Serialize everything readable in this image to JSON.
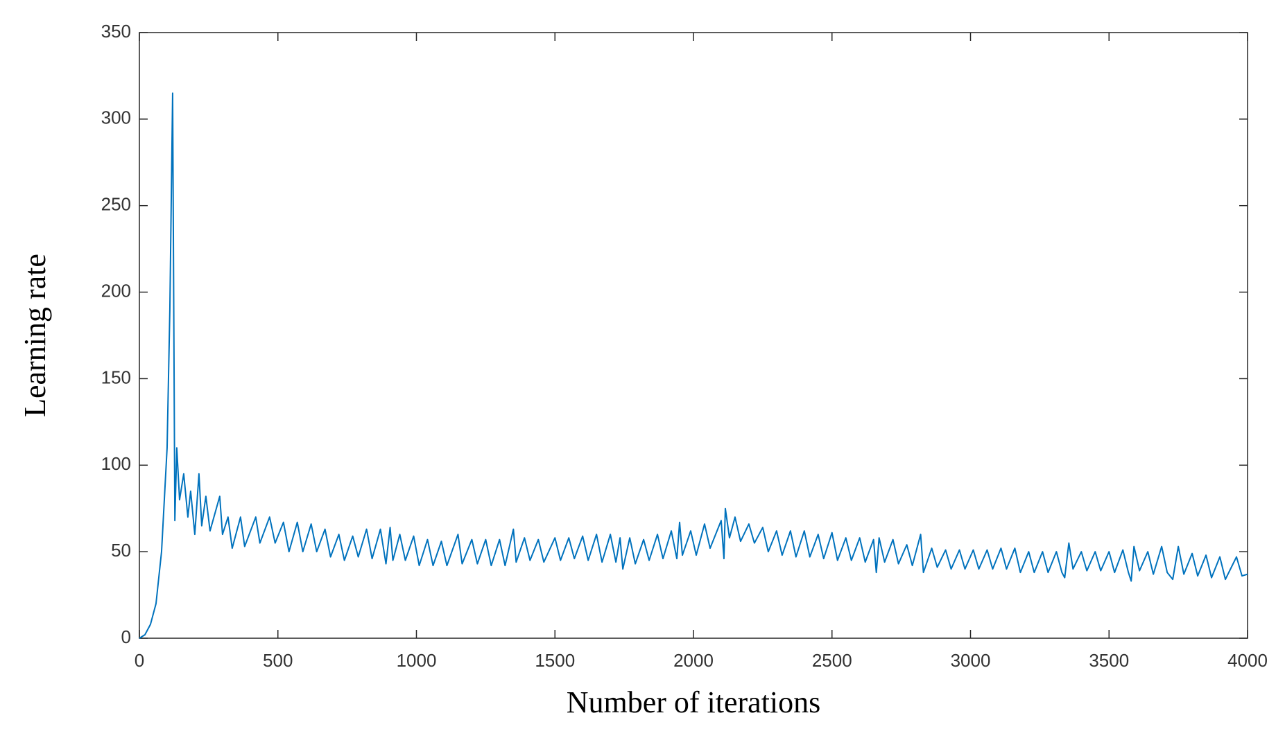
{
  "chart_data": {
    "type": "line",
    "xlabel": "Number of iterations",
    "ylabel": "Learning rate",
    "xlim": [
      0,
      4000
    ],
    "ylim": [
      0,
      350
    ],
    "xticks": [
      0,
      500,
      1000,
      1500,
      2000,
      2500,
      3000,
      3500,
      4000
    ],
    "yticks": [
      0,
      50,
      100,
      150,
      200,
      250,
      300,
      350
    ],
    "grid": false,
    "series": [
      {
        "color": "#0072bd",
        "x": [
          0,
          20,
          40,
          60,
          80,
          100,
          110,
          120,
          128,
          135,
          145,
          160,
          175,
          185,
          200,
          215,
          225,
          240,
          255,
          290,
          300,
          320,
          335,
          365,
          380,
          420,
          435,
          470,
          490,
          520,
          540,
          570,
          590,
          620,
          640,
          670,
          690,
          720,
          740,
          770,
          790,
          820,
          840,
          870,
          890,
          905,
          915,
          940,
          960,
          990,
          1010,
          1040,
          1060,
          1090,
          1110,
          1150,
          1165,
          1200,
          1220,
          1250,
          1270,
          1300,
          1320,
          1350,
          1360,
          1390,
          1410,
          1440,
          1460,
          1500,
          1520,
          1550,
          1570,
          1600,
          1620,
          1650,
          1670,
          1700,
          1720,
          1735,
          1745,
          1770,
          1790,
          1820,
          1840,
          1870,
          1890,
          1920,
          1940,
          1950,
          1960,
          1990,
          2010,
          2040,
          2060,
          2100,
          2110,
          2115,
          2130,
          2150,
          2170,
          2200,
          2220,
          2250,
          2270,
          2300,
          2320,
          2350,
          2370,
          2400,
          2420,
          2450,
          2470,
          2500,
          2520,
          2550,
          2570,
          2600,
          2620,
          2650,
          2660,
          2670,
          2690,
          2720,
          2740,
          2770,
          2790,
          2820,
          2830,
          2860,
          2880,
          2910,
          2930,
          2960,
          2980,
          3010,
          3030,
          3060,
          3080,
          3110,
          3130,
          3160,
          3180,
          3210,
          3230,
          3260,
          3280,
          3310,
          3330,
          3340,
          3355,
          3370,
          3400,
          3420,
          3450,
          3470,
          3500,
          3520,
          3550,
          3570,
          3580,
          3590,
          3610,
          3640,
          3660,
          3690,
          3710,
          3730,
          3750,
          3770,
          3800,
          3820,
          3850,
          3870,
          3900,
          3920,
          3960,
          3980,
          4000
        ],
        "values": [
          0,
          2,
          8,
          20,
          50,
          110,
          190,
          315,
          68,
          110,
          80,
          95,
          70,
          85,
          60,
          95,
          65,
          82,
          62,
          82,
          60,
          70,
          52,
          70,
          53,
          70,
          55,
          70,
          55,
          67,
          50,
          67,
          50,
          66,
          50,
          63,
          47,
          60,
          45,
          59,
          47,
          63,
          46,
          63,
          43,
          64,
          45,
          60,
          45,
          59,
          42,
          57,
          42,
          56,
          42,
          60,
          43,
          57,
          43,
          57,
          42,
          57,
          42,
          63,
          44,
          58,
          45,
          57,
          44,
          58,
          45,
          58,
          46,
          59,
          45,
          60,
          44,
          60,
          44,
          58,
          40,
          58,
          43,
          57,
          45,
          60,
          46,
          62,
          46,
          67,
          48,
          62,
          48,
          66,
          52,
          68,
          46,
          75,
          58,
          70,
          56,
          66,
          55,
          64,
          50,
          62,
          48,
          62,
          47,
          62,
          47,
          60,
          46,
          61,
          45,
          58,
          45,
          58,
          44,
          57,
          38,
          58,
          44,
          57,
          43,
          54,
          42,
          60,
          38,
          52,
          41,
          51,
          40,
          51,
          40,
          51,
          40,
          51,
          40,
          52,
          40,
          52,
          38,
          50,
          38,
          50,
          38,
          50,
          38,
          35,
          55,
          40,
          50,
          39,
          50,
          39,
          50,
          38,
          51,
          38,
          33,
          53,
          39,
          50,
          37,
          53,
          38,
          34,
          53,
          37,
          49,
          36,
          48,
          35,
          47,
          34,
          47,
          36,
          37
        ]
      }
    ]
  }
}
